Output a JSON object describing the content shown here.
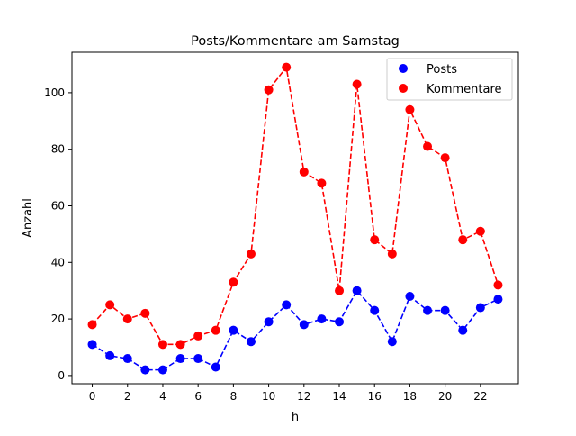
{
  "chart_data": {
    "type": "line",
    "title": "Posts/Kommentare am Samstag",
    "xlabel": "h",
    "ylabel": "Anzahl",
    "x": [
      0,
      1,
      2,
      3,
      4,
      5,
      6,
      7,
      8,
      9,
      10,
      11,
      12,
      13,
      14,
      15,
      16,
      17,
      18,
      19,
      20,
      21,
      22,
      23
    ],
    "xlim": [
      -1.15,
      24.15
    ],
    "ylim": [
      -2.9,
      114.3
    ],
    "xticks": [
      0,
      2,
      4,
      6,
      8,
      10,
      12,
      14,
      16,
      18,
      20,
      22
    ],
    "yticks": [
      0,
      20,
      40,
      60,
      80,
      100
    ],
    "grid": false,
    "legend_position": "top-right",
    "series": [
      {
        "name": "Posts",
        "color": "#0000ff",
        "style": "dashed-markers",
        "values": [
          11,
          7,
          6,
          2,
          2,
          6,
          6,
          3,
          16,
          12,
          19,
          25,
          18,
          20,
          19,
          30,
          23,
          12,
          28,
          23,
          23,
          16,
          24,
          27
        ]
      },
      {
        "name": "Kommentare",
        "color": "#ff0000",
        "style": "dashed-markers",
        "values": [
          18,
          25,
          20,
          22,
          11,
          11,
          14,
          16,
          33,
          43,
          101,
          109,
          72,
          68,
          30,
          103,
          48,
          43,
          94,
          81,
          77,
          48,
          51,
          32
        ]
      }
    ]
  }
}
